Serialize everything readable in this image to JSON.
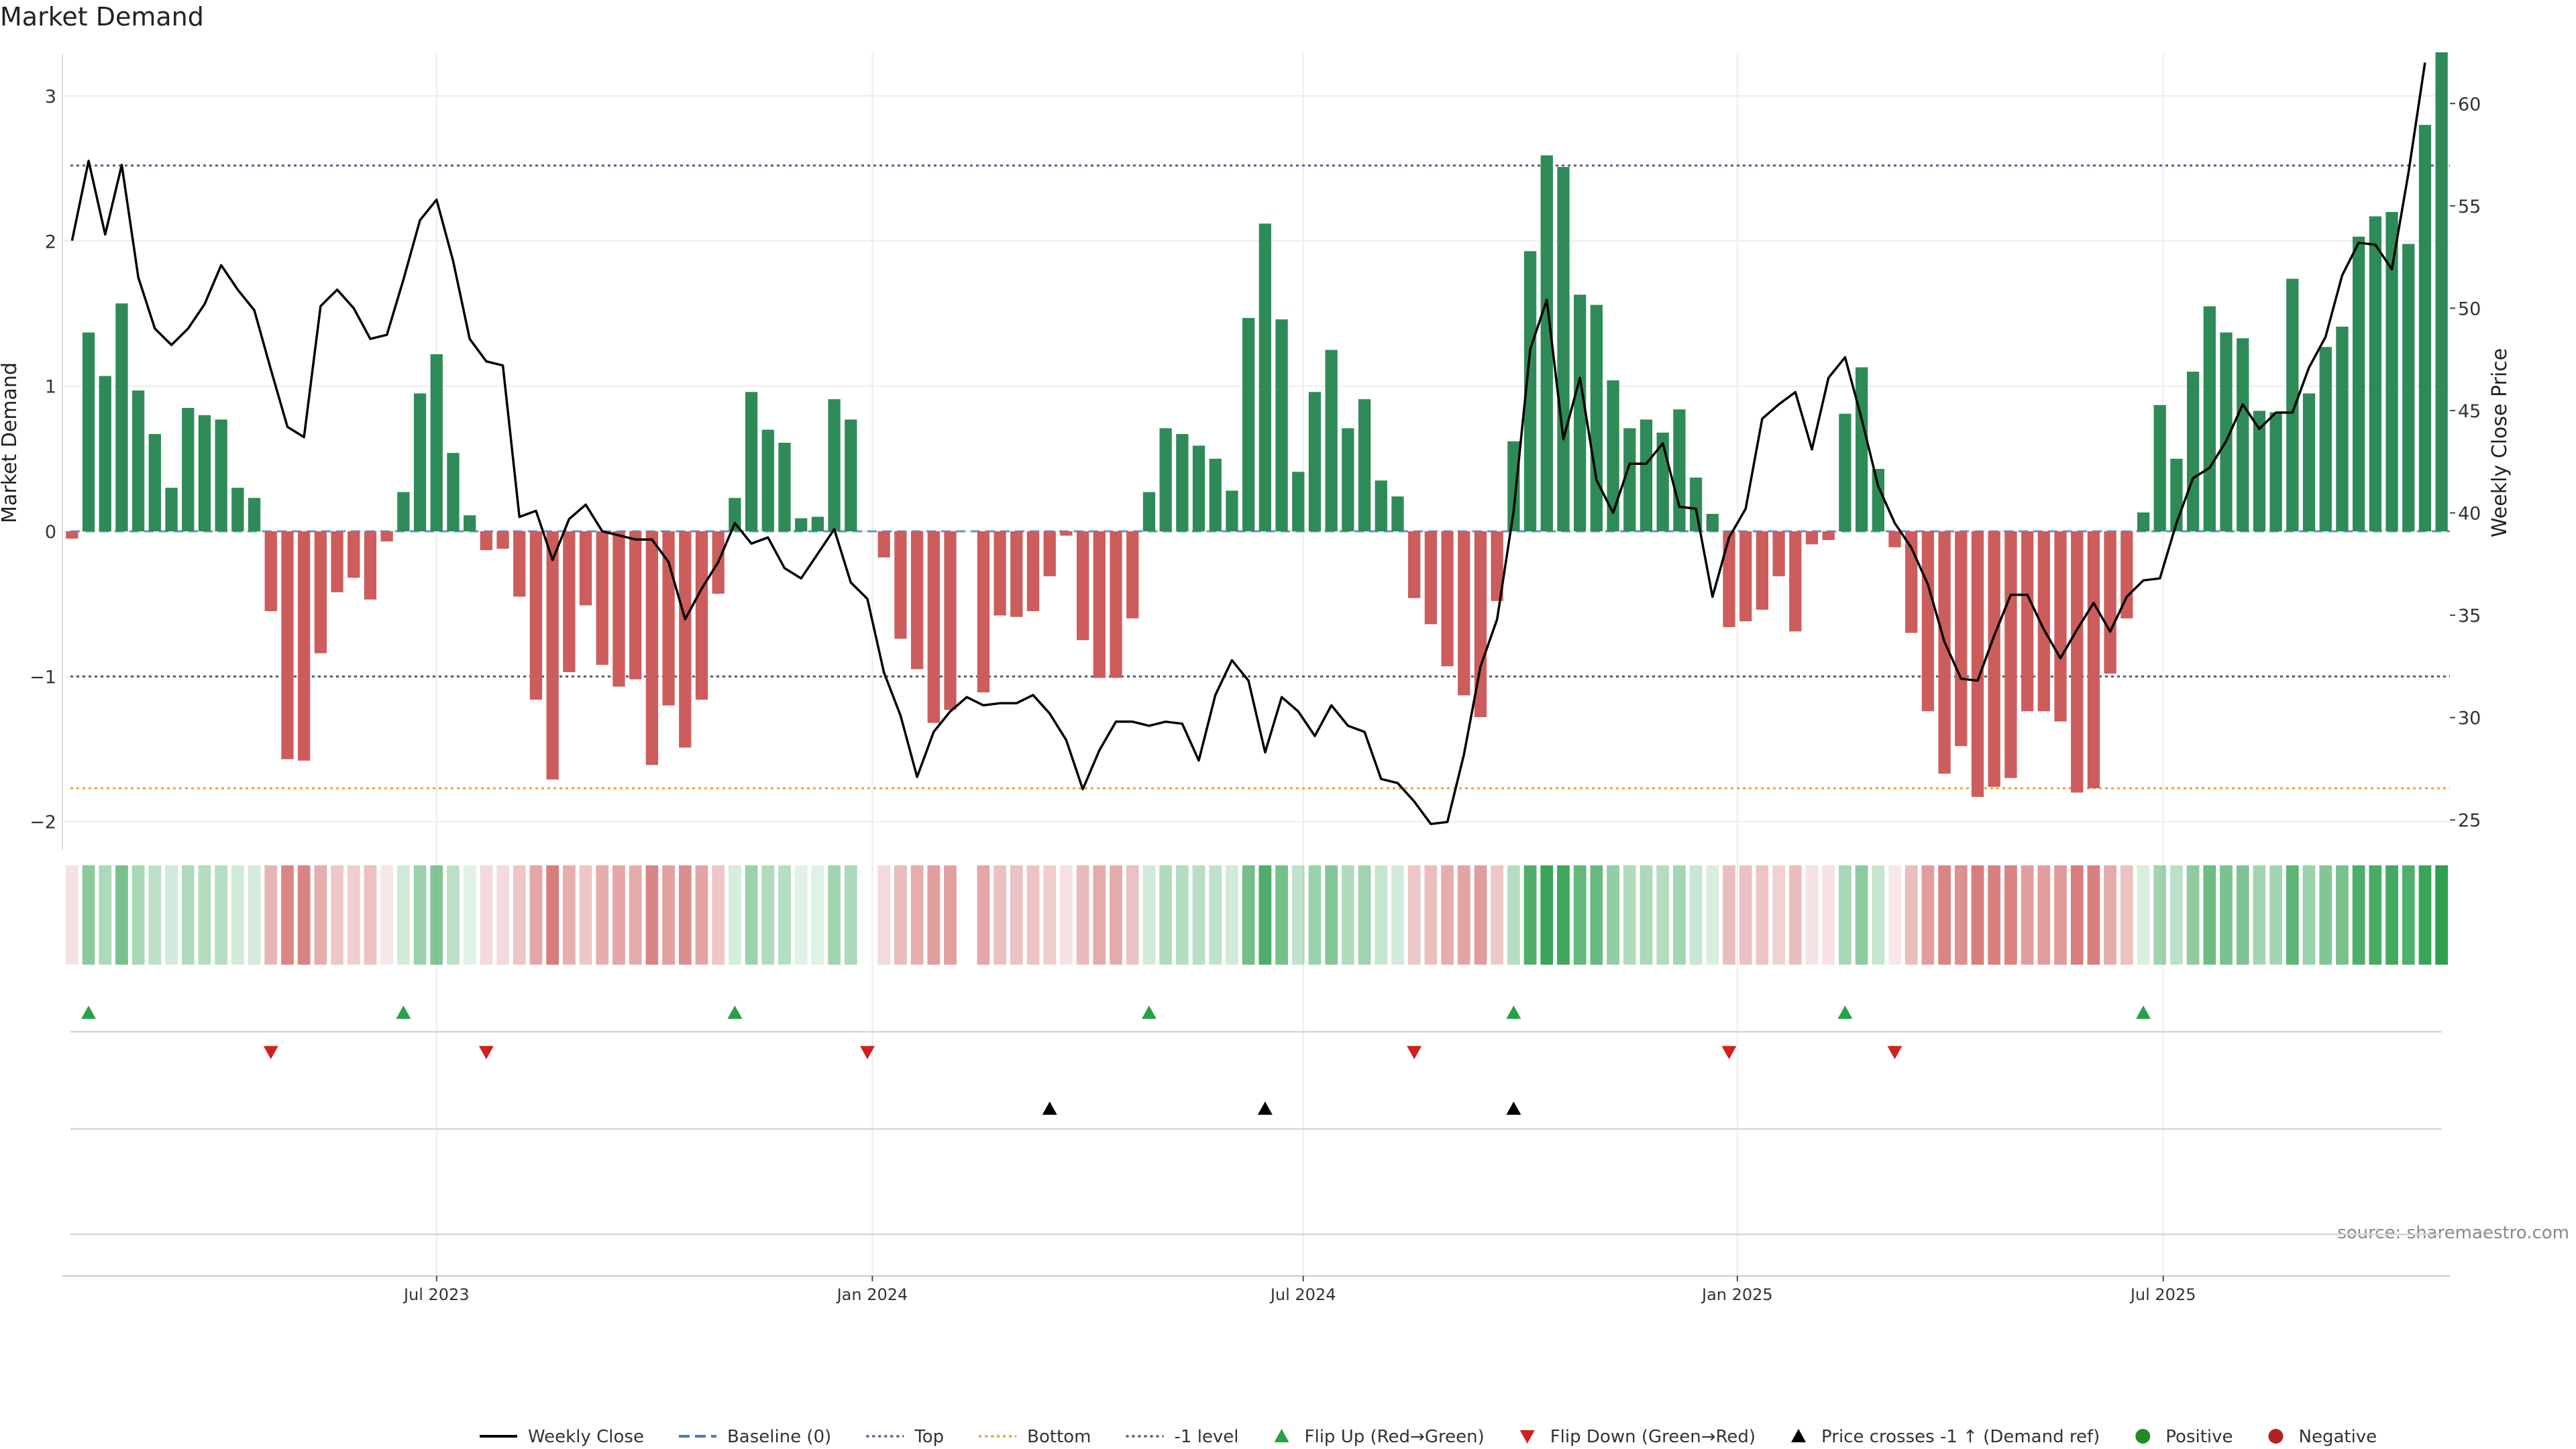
{
  "chart_data": {
    "type": "bar",
    "title": "Market Demand",
    "ylabel": "Market Demand",
    "y2label": "Weekly Close Price",
    "source": "source: sharemaestro.com",
    "ylim": [
      -2.2,
      3.3
    ],
    "y2lim": [
      23.5,
      62.5
    ],
    "yticks": [
      -2,
      -1,
      0,
      1,
      2,
      3
    ],
    "y2ticks": [
      25,
      30,
      35,
      40,
      45,
      50,
      55,
      60
    ],
    "xticks": [
      "Jul 2023",
      "Jan 2024",
      "Jul 2024",
      "Jan 2025",
      "Jul 2025"
    ],
    "xtick_weeks": [
      22,
      48.3,
      74.3,
      100.5,
      126.2
    ],
    "levels": {
      "top": 2.52,
      "bottom": -1.77,
      "minus_one": -1.0,
      "baseline": 0
    },
    "colors": {
      "positive": "#2e8b57",
      "negative": "#cd5c5c",
      "price": "#000000",
      "top": "#5a5a8a",
      "bottom": "#f0a030",
      "flip_up": "#27a04a",
      "flip_down": "#d02020",
      "cross": "#000000",
      "heat_pos": "#2fa050",
      "heat_neg": "#cd5c5c",
      "legend_positive": "#228b22",
      "legend_negative": "#b22222"
    },
    "series": [
      {
        "name": "Market Demand",
        "values": [
          -0.05,
          1.37,
          1.07,
          1.57,
          0.97,
          0.67,
          0.3,
          0.85,
          0.8,
          0.77,
          0.3,
          0.23,
          -0.55,
          -1.57,
          -1.58,
          -0.84,
          -0.42,
          -0.32,
          -0.47,
          -0.07,
          0.27,
          0.95,
          1.22,
          0.54,
          0.11,
          -0.13,
          -0.12,
          -0.45,
          -1.16,
          -1.71,
          -0.97,
          -0.51,
          -0.92,
          -1.07,
          -1.02,
          -1.61,
          -1.2,
          -1.49,
          -1.16,
          -0.43,
          0.23,
          0.96,
          0.7,
          0.61,
          0.09,
          0.1,
          0.91,
          0.77,
          0.0,
          -0.18,
          -0.74,
          -0.95,
          -1.32,
          -1.23,
          0.0,
          -1.11,
          -0.58,
          -0.59,
          -0.55,
          -0.31,
          -0.03,
          -0.75,
          -1.01,
          -1.01,
          -0.6,
          0.27,
          0.71,
          0.67,
          0.59,
          0.5,
          0.28,
          1.47,
          2.12,
          1.46,
          0.41,
          0.96,
          1.25,
          0.71,
          0.91,
          0.35,
          0.24,
          -0.46,
          -0.64,
          -0.93,
          -1.13,
          -1.28,
          -0.48,
          0.62,
          1.93,
          2.59,
          2.51,
          1.63,
          1.56,
          1.04,
          0.71,
          0.77,
          0.68,
          0.84,
          0.37,
          0.12,
          -0.66,
          -0.62,
          -0.54,
          -0.31,
          -0.69,
          -0.09,
          -0.06,
          0.81,
          1.13,
          0.43,
          -0.11,
          -0.7,
          -1.24,
          -1.67,
          -1.48,
          -1.83,
          -1.76,
          -1.7,
          -1.24,
          -1.24,
          -1.31,
          -1.8,
          -1.77,
          -0.98,
          -0.6,
          0.13,
          0.87,
          0.5,
          1.1,
          1.55,
          1.37,
          1.33,
          0.83,
          0.82,
          1.74,
          0.95,
          1.27,
          1.41,
          2.03,
          2.17,
          2.2,
          1.98,
          2.8,
          3.3
        ]
      },
      {
        "name": "Weekly Close",
        "values": [
          53.3,
          57.2,
          53.6,
          57.0,
          51.5,
          49.0,
          48.2,
          49.0,
          50.2,
          52.1,
          50.9,
          49.9,
          47.0,
          44.2,
          43.7,
          50.1,
          50.9,
          50.0,
          48.5,
          48.7,
          51.4,
          54.3,
          55.3,
          52.3,
          48.5,
          47.4,
          47.2,
          39.8,
          40.1,
          37.7,
          39.7,
          40.4,
          39.1,
          38.9,
          38.7,
          38.7,
          37.6,
          34.8,
          36.3,
          37.6,
          39.5,
          38.5,
          38.8,
          37.3,
          36.8,
          38.0,
          39.2,
          36.6,
          35.8,
          32.2,
          30.1,
          27.1,
          29.3,
          30.3,
          31.0,
          30.6,
          30.7,
          30.7,
          31.1,
          30.2,
          28.9,
          26.5,
          28.4,
          29.8,
          29.8,
          29.6,
          29.8,
          29.7,
          27.9,
          31.1,
          32.8,
          31.8,
          28.3,
          31.0,
          30.3,
          29.1,
          30.6,
          29.6,
          29.3,
          27.0,
          26.8,
          25.9,
          24.8,
          24.9,
          28.2,
          32.5,
          34.8,
          40.1,
          48.0,
          50.4,
          43.6,
          46.6,
          41.6,
          40.0,
          42.4,
          42.4,
          43.4,
          40.3,
          40.2,
          35.9,
          38.8,
          40.2,
          44.6,
          45.3,
          45.9,
          43.1,
          46.6,
          47.6,
          44.6,
          41.3,
          39.5,
          38.3,
          36.5,
          33.7,
          31.9,
          31.8,
          34.0,
          36.0,
          36.0,
          34.3,
          32.9,
          34.3,
          35.6,
          34.2,
          35.9,
          36.7,
          36.8,
          39.5,
          41.7,
          42.2,
          43.5,
          45.3,
          44.1,
          44.9,
          44.9,
          47.1,
          48.6,
          51.6,
          53.2,
          53.1,
          51.9,
          56.6,
          62.0
        ]
      }
    ],
    "heat_alpha": [
      0.18,
      0.55,
      0.4,
      0.65,
      0.42,
      0.32,
      0.22,
      0.38,
      0.36,
      0.35,
      0.22,
      0.2,
      0.45,
      0.75,
      0.75,
      0.5,
      0.35,
      0.3,
      0.38,
      0.15,
      0.22,
      0.48,
      0.6,
      0.32,
      0.15,
      0.22,
      0.22,
      0.35,
      0.55,
      0.8,
      0.5,
      0.35,
      0.5,
      0.55,
      0.52,
      0.75,
      0.58,
      0.7,
      0.56,
      0.35,
      0.2,
      0.48,
      0.38,
      0.35,
      0.15,
      0.15,
      0.45,
      0.4,
      0.0,
      0.22,
      0.42,
      0.5,
      0.6,
      0.58,
      0.0,
      0.55,
      0.38,
      0.38,
      0.36,
      0.3,
      0.18,
      0.42,
      0.52,
      0.52,
      0.38,
      0.22,
      0.38,
      0.36,
      0.34,
      0.3,
      0.22,
      0.68,
      0.85,
      0.66,
      0.3,
      0.48,
      0.6,
      0.38,
      0.46,
      0.28,
      0.22,
      0.34,
      0.4,
      0.5,
      0.56,
      0.6,
      0.34,
      0.35,
      0.85,
      0.95,
      0.92,
      0.75,
      0.72,
      0.52,
      0.38,
      0.4,
      0.36,
      0.44,
      0.26,
      0.18,
      0.4,
      0.38,
      0.36,
      0.28,
      0.4,
      0.18,
      0.18,
      0.42,
      0.55,
      0.28,
      0.15,
      0.4,
      0.6,
      0.75,
      0.68,
      0.8,
      0.78,
      0.76,
      0.6,
      0.6,
      0.62,
      0.8,
      0.78,
      0.52,
      0.38,
      0.18,
      0.46,
      0.32,
      0.54,
      0.7,
      0.64,
      0.62,
      0.44,
      0.44,
      0.78,
      0.48,
      0.6,
      0.65,
      0.85,
      0.88,
      0.9,
      0.84,
      0.95,
      1.0
    ],
    "events": {
      "flip_up": [
        1,
        20,
        40,
        65,
        87,
        107,
        125
      ],
      "flip_down": [
        12,
        25,
        48,
        81,
        100,
        110
      ],
      "price_cross": [
        59,
        72,
        87
      ]
    },
    "legend": [
      {
        "label": "Weekly Close",
        "kind": "line",
        "color": "#000000"
      },
      {
        "label": "Baseline (0)",
        "kind": "dash",
        "color": "#4a7ab8"
      },
      {
        "label": "Top",
        "kind": "dot",
        "color": "#5a5a8a"
      },
      {
        "label": "Bottom",
        "kind": "dot",
        "color": "#f0a030"
      },
      {
        "label": "-1 level",
        "kind": "dot",
        "color": "#5a5a6a"
      },
      {
        "label": "Flip Up (Red→Green)",
        "kind": "tri-up",
        "color": "#27a04a"
      },
      {
        "label": "Flip Down (Green→Red)",
        "kind": "tri-down",
        "color": "#d02020"
      },
      {
        "label": "Price crosses -1 ↑ (Demand ref)",
        "kind": "tri-up",
        "color": "#000000"
      },
      {
        "label": "Positive",
        "kind": "circle",
        "color": "#228b22"
      },
      {
        "label": "Negative",
        "kind": "circle",
        "color": "#b22222"
      }
    ]
  }
}
